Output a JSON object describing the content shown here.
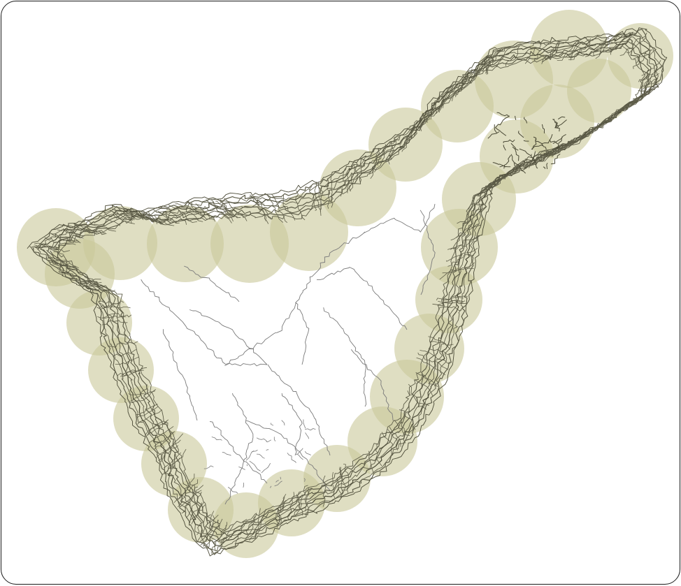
{
  "map": {
    "colors": {
      "background": "#ffffff",
      "frame_border": "#1a1a1a",
      "buffer_fill": "#c9c89a",
      "road_line": "#5f5e4a",
      "road_line_dark": "#4a4936",
      "interior_road": "#7a7a7a"
    }
  }
}
